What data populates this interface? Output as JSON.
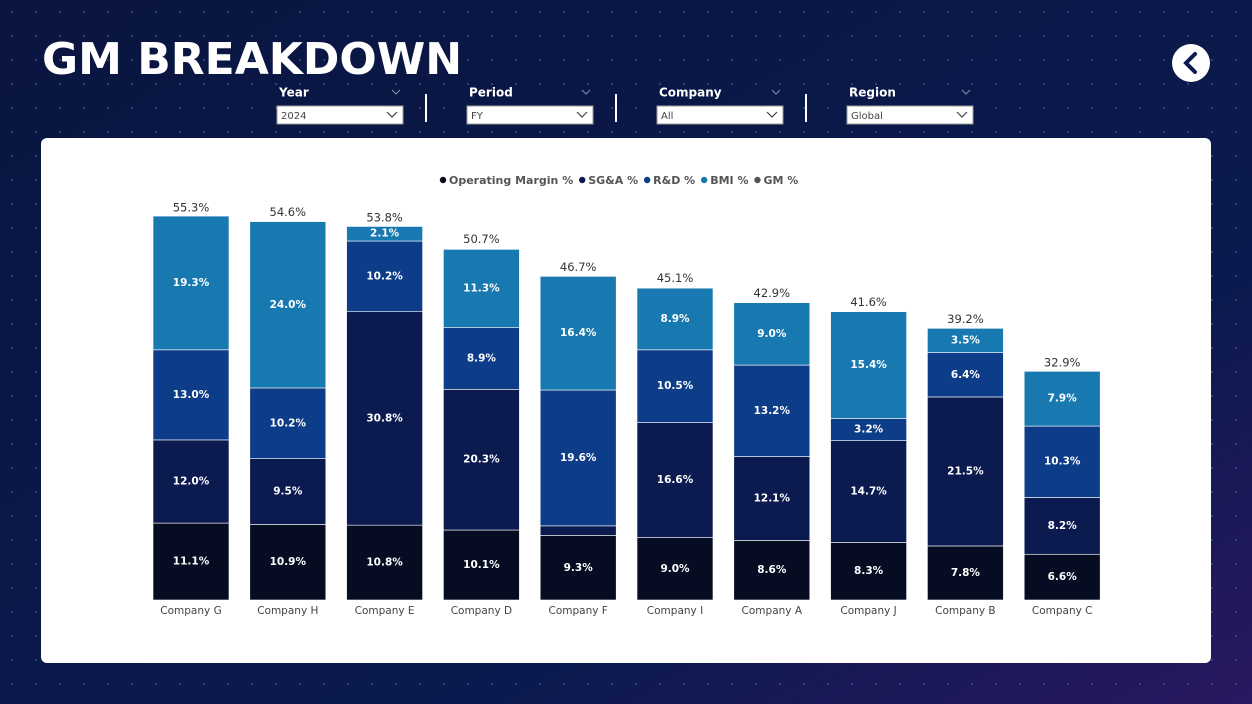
{
  "header": {
    "title": "GM BREAKDOWN"
  },
  "filters": [
    {
      "label": "Year",
      "value": "2024"
    },
    {
      "label": "Period",
      "value": "FY"
    },
    {
      "label": "Company",
      "value": "All"
    },
    {
      "label": "Region",
      "value": "Global"
    }
  ],
  "chart_data": {
    "type": "stacked-bar",
    "categories": [
      "Company G",
      "Company H",
      "Company E",
      "Company D",
      "Company F",
      "Company I",
      "Company A",
      "Company J",
      "Company B",
      "Company C"
    ],
    "series": [
      {
        "name": "Operating Margin %",
        "color": "#060d22",
        "values": [
          11.1,
          10.9,
          10.8,
          10.1,
          9.3,
          9.0,
          8.6,
          8.3,
          7.8,
          6.6
        ],
        "value_labels": [
          "11.1%",
          "10.9%",
          "10.8%",
          "10.1%",
          "9.3%",
          "9.0%",
          "8.6%",
          "8.3%",
          "7.8%",
          "6.6%"
        ]
      },
      {
        "name": "SG&A %",
        "color": "#0b1a4f",
        "values": [
          12.0,
          9.5,
          30.8,
          20.3,
          1.4,
          16.6,
          12.1,
          14.7,
          21.5,
          8.2
        ],
        "value_labels": [
          "12.0%",
          "9.5%",
          "30.8%",
          "20.3%",
          null,
          "16.6%",
          "12.1%",
          "14.7%",
          "21.5%",
          "8.2%"
        ]
      },
      {
        "name": "R&D %",
        "color": "#0d3c88",
        "values": [
          13.0,
          10.2,
          10.2,
          8.9,
          19.6,
          10.5,
          13.2,
          3.2,
          6.4,
          10.3
        ],
        "value_labels": [
          "13.0%",
          "10.2%",
          "10.2%",
          "8.9%",
          "19.6%",
          "10.5%",
          "13.2%",
          "3.2%",
          "6.4%",
          "10.3%"
        ]
      },
      {
        "name": "BMI %",
        "color": "#1878b0",
        "values": [
          19.3,
          24.0,
          2.1,
          11.3,
          16.4,
          8.9,
          9.0,
          15.4,
          3.5,
          7.9
        ],
        "value_labels": [
          "19.3%",
          "24.0%",
          "2.1%",
          "11.3%",
          "16.4%",
          "8.9%",
          "9.0%",
          "15.4%",
          "3.5%",
          "7.9%"
        ]
      },
      {
        "name": "GM %",
        "color": "#555555",
        "values": [
          55.3,
          54.6,
          53.8,
          50.7,
          46.7,
          45.1,
          42.9,
          41.6,
          39.2,
          32.9
        ],
        "value_labels": [
          "55.3%",
          "54.6%",
          "53.8%",
          "50.7%",
          "46.7%",
          "45.1%",
          "42.9%",
          "41.6%",
          "39.2%",
          "32.9%"
        ]
      }
    ]
  }
}
